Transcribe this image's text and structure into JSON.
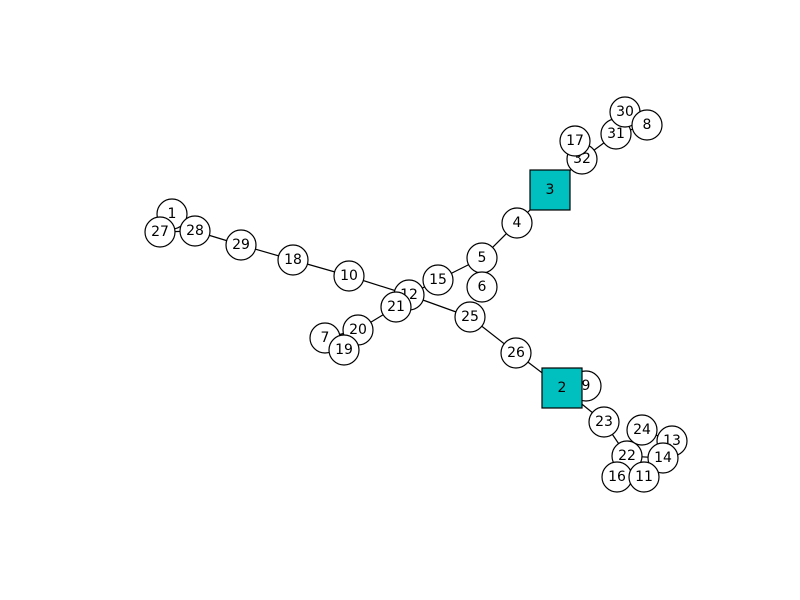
{
  "graph": {
    "colors": {
      "square_fill": "#00bfbf",
      "circle_fill": "#ffffff",
      "stroke": "#000000"
    },
    "nodes": [
      {
        "id": "1",
        "shape": "circle"
      },
      {
        "id": "27",
        "shape": "circle"
      },
      {
        "id": "28",
        "shape": "circle"
      },
      {
        "id": "29",
        "shape": "circle"
      },
      {
        "id": "18",
        "shape": "circle"
      },
      {
        "id": "10",
        "shape": "circle"
      },
      {
        "id": "12",
        "shape": "circle"
      },
      {
        "id": "21",
        "shape": "circle"
      },
      {
        "id": "20",
        "shape": "circle"
      },
      {
        "id": "7",
        "shape": "circle"
      },
      {
        "id": "19",
        "shape": "circle"
      },
      {
        "id": "15",
        "shape": "circle"
      },
      {
        "id": "5",
        "shape": "circle"
      },
      {
        "id": "6",
        "shape": "circle"
      },
      {
        "id": "4",
        "shape": "circle"
      },
      {
        "id": "3",
        "shape": "square"
      },
      {
        "id": "32",
        "shape": "circle"
      },
      {
        "id": "17",
        "shape": "circle"
      },
      {
        "id": "31",
        "shape": "circle"
      },
      {
        "id": "30",
        "shape": "circle"
      },
      {
        "id": "8",
        "shape": "circle"
      },
      {
        "id": "25",
        "shape": "circle"
      },
      {
        "id": "26",
        "shape": "circle"
      },
      {
        "id": "9",
        "shape": "circle"
      },
      {
        "id": "2",
        "shape": "square"
      },
      {
        "id": "23",
        "shape": "circle"
      },
      {
        "id": "22",
        "shape": "circle"
      },
      {
        "id": "24",
        "shape": "circle"
      },
      {
        "id": "13",
        "shape": "circle"
      },
      {
        "id": "14",
        "shape": "circle"
      },
      {
        "id": "16",
        "shape": "circle"
      },
      {
        "id": "11",
        "shape": "circle"
      }
    ],
    "edges": [
      [
        "1",
        "28"
      ],
      [
        "27",
        "28"
      ],
      [
        "28",
        "29"
      ],
      [
        "29",
        "18"
      ],
      [
        "18",
        "10"
      ],
      [
        "10",
        "12"
      ],
      [
        "12",
        "21"
      ],
      [
        "12",
        "15"
      ],
      [
        "12",
        "25"
      ],
      [
        "21",
        "20"
      ],
      [
        "20",
        "7"
      ],
      [
        "20",
        "19"
      ],
      [
        "15",
        "5"
      ],
      [
        "5",
        "6"
      ],
      [
        "5",
        "4"
      ],
      [
        "4",
        "3"
      ],
      [
        "3",
        "32"
      ],
      [
        "32",
        "17"
      ],
      [
        "32",
        "31"
      ],
      [
        "31",
        "30"
      ],
      [
        "31",
        "8"
      ],
      [
        "25",
        "26"
      ],
      [
        "26",
        "2"
      ],
      [
        "2",
        "9"
      ],
      [
        "2",
        "23"
      ],
      [
        "23",
        "22"
      ],
      [
        "22",
        "24"
      ],
      [
        "22",
        "16"
      ],
      [
        "22",
        "11"
      ],
      [
        "22",
        "14"
      ],
      [
        "24",
        "13"
      ],
      [
        "14",
        "13"
      ]
    ]
  }
}
